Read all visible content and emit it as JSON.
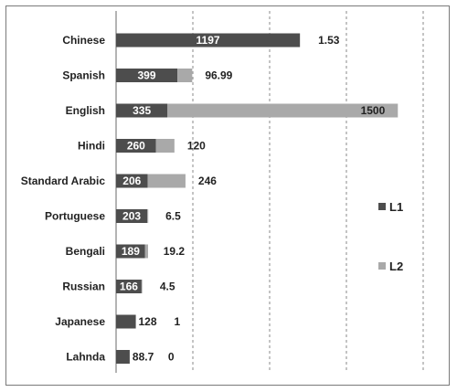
{
  "chart_data": {
    "type": "bar",
    "orientation": "horizontal",
    "stacked": true,
    "title": "",
    "xlabel": "",
    "ylabel": "",
    "categories": [
      "Chinese",
      "Spanish",
      "English",
      "Hindi",
      "Standard Arabic",
      "Portuguese",
      "Bengali",
      "Russian",
      "Japanese",
      "Lahnda"
    ],
    "series": [
      {
        "name": "L1",
        "color": "#4d4d4d",
        "values": [
          1197,
          399,
          335,
          260,
          206,
          203,
          189,
          166,
          128,
          88.7
        ],
        "labels": [
          "1197",
          "399",
          "335",
          "260",
          "206",
          "203",
          "189",
          "166",
          "128",
          "88.7"
        ]
      },
      {
        "name": "L2",
        "color": "#a9a9a9",
        "values": [
          1.53,
          96.99,
          1500,
          120,
          246,
          6.5,
          19.2,
          4.5,
          1,
          0
        ],
        "labels": [
          "1.53",
          "96.99",
          "1500",
          "120",
          "246",
          "6.5",
          "19.2",
          "4.5",
          "1",
          "0"
        ]
      }
    ],
    "xlim": [
      0,
      2000
    ],
    "grid": true,
    "legend_position": "right"
  }
}
